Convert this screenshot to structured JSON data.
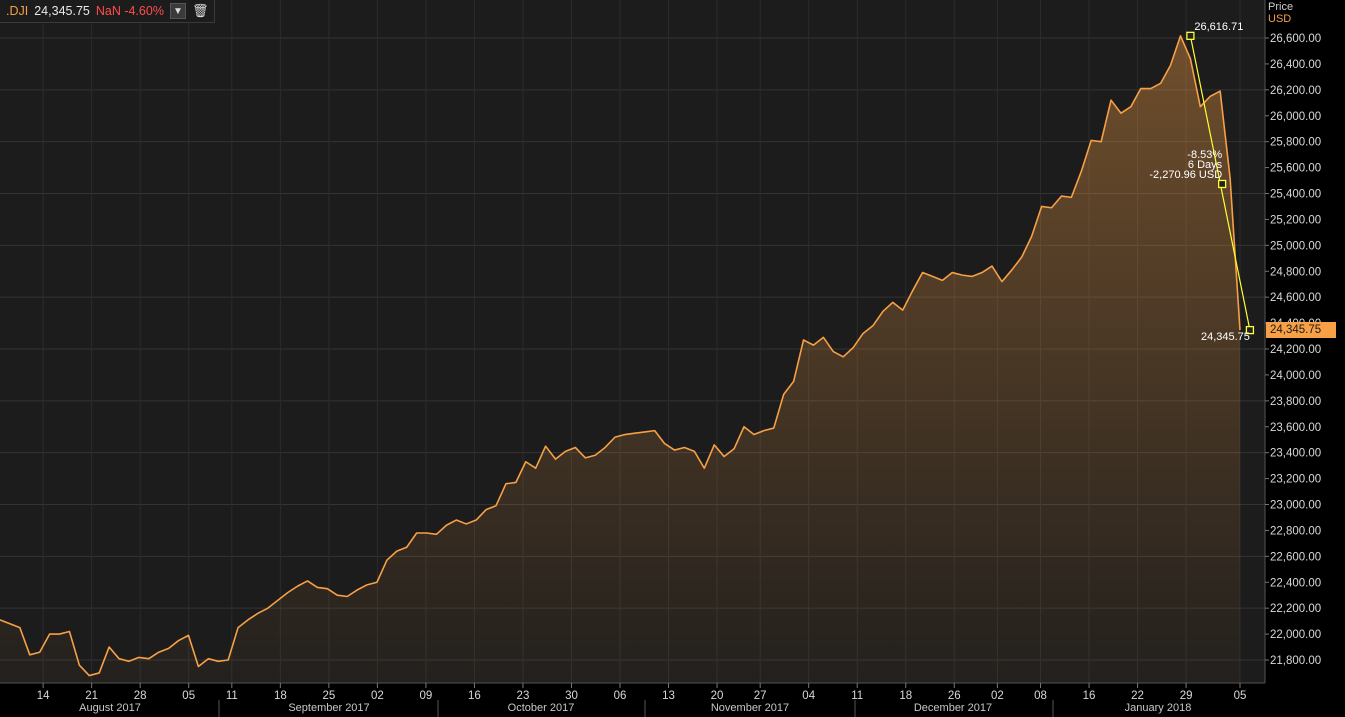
{
  "legend": {
    "symbol": ".DJI",
    "last": "24,345.75",
    "change_label": "NaN -4.60%",
    "dropdown_icon": "chevron-down-icon",
    "delete_icon": "trash-icon"
  },
  "axis_title": {
    "line1": "Price",
    "line2": "USD"
  },
  "price_tag": "24,345.75",
  "annotations": {
    "high_label": "26,616.71",
    "pct_label": "-8.53%",
    "days_label": "6 Days",
    "diff_label": "-2,270.96 USD",
    "low_label": "24,345.75"
  },
  "colors": {
    "background": "#1a1a1a",
    "line": "#f7a046",
    "measure": "#ffff33",
    "price_tag": "#f7a046",
    "negative": "#ff4d4d"
  },
  "chart_data": {
    "type": "area",
    "series": [
      {
        "name": ".DJI",
        "values": [
          22110,
          22080,
          22050,
          21840,
          21860,
          22000,
          22000,
          22020,
          21760,
          21680,
          21700,
          21900,
          21810,
          21790,
          21820,
          21810,
          21860,
          21890,
          21950,
          21990,
          21750,
          21810,
          21790,
          21800,
          22050,
          22110,
          22160,
          22200,
          22260,
          22320,
          22370,
          22410,
          22360,
          22350,
          22300,
          22290,
          22340,
          22380,
          22400,
          22570,
          22640,
          22670,
          22780,
          22780,
          22770,
          22840,
          22880,
          22850,
          22880,
          22960,
          22990,
          23160,
          23170,
          23330,
          23280,
          23450,
          23350,
          23410,
          23440,
          23360,
          23380,
          23440,
          23520,
          23540,
          23550,
          23560,
          23570,
          23470,
          23420,
          23440,
          23410,
          23280,
          23460,
          23370,
          23430,
          23600,
          23540,
          23570,
          23590,
          23850,
          23950,
          24270,
          24230,
          24290,
          24180,
          24140,
          24210,
          24320,
          24380,
          24490,
          24560,
          24500,
          24650,
          24790,
          24760,
          24730,
          24790,
          24770,
          24760,
          24790,
          24840,
          24720,
          24810,
          24910,
          25070,
          25300,
          25290,
          25380,
          25370,
          25570,
          25810,
          25800,
          26120,
          26020,
          26070,
          26210,
          26210,
          26250,
          26390,
          26616.71,
          26440,
          26070,
          26150,
          26190,
          25520,
          24345.75
        ]
      }
    ],
    "y_ticks": [
      21800,
      22000,
      22200,
      22400,
      22600,
      22800,
      23000,
      23200,
      23400,
      23600,
      23800,
      24000,
      24200,
      24400,
      24600,
      24800,
      25000,
      25200,
      25400,
      25600,
      25800,
      26000,
      26200,
      26400,
      26600
    ],
    "y_tick_labels": [
      "21,800.00",
      "22,000.00",
      "22,200.00",
      "22,400.00",
      "22,600.00",
      "22,800.00",
      "23,000.00",
      "23,200.00",
      "23,400.00",
      "23,600.00",
      "23,800.00",
      "24,000.00",
      "24,200.00",
      "24,400.00",
      "24,600.00",
      "24,800.00",
      "25,000.00",
      "25,200.00",
      "25,400.00",
      "25,600.00",
      "25,800.00",
      "26,000.00",
      "26,200.00",
      "26,400.00",
      "26,600.00"
    ],
    "ylim": [
      21600,
      26900
    ],
    "x_ticks": [
      {
        "index": 8,
        "label": "14"
      },
      {
        "index": 17,
        "label": "21"
      },
      {
        "index": 26,
        "label": "28"
      },
      {
        "index": 35,
        "label": "05"
      },
      {
        "index": 43,
        "label": "11"
      },
      {
        "index": 52,
        "label": "18"
      },
      {
        "index": 61,
        "label": "25"
      },
      {
        "index": 70,
        "label": "02"
      },
      {
        "index": 79,
        "label": "09"
      },
      {
        "index": 88,
        "label": "16"
      },
      {
        "index": 97,
        "label": "23"
      },
      {
        "index": 106,
        "label": "30"
      },
      {
        "index": 115,
        "label": "06"
      },
      {
        "index": 124,
        "label": "13"
      },
      {
        "index": 133,
        "label": "20"
      },
      {
        "index": 141,
        "label": "27"
      },
      {
        "index": 150,
        "label": "04"
      },
      {
        "index": 159,
        "label": "11"
      },
      {
        "index": 168,
        "label": "18"
      },
      {
        "index": 177,
        "label": "26"
      },
      {
        "index": 185,
        "label": "02"
      },
      {
        "index": 193,
        "label": "08"
      },
      {
        "index": 202,
        "label": "16"
      },
      {
        "index": 211,
        "label": "22"
      },
      {
        "index": 220,
        "label": "29"
      },
      {
        "index": 230,
        "label": "05"
      }
    ],
    "months": [
      "August 2017",
      "September 2017",
      "October 2017",
      "November 2017",
      "December 2017",
      "January 2018"
    ],
    "measure": {
      "from_index": 120,
      "from_value": 26616.71,
      "to_index": 126,
      "to_value": 24345.75
    },
    "grid": true,
    "axis_position": "right"
  }
}
